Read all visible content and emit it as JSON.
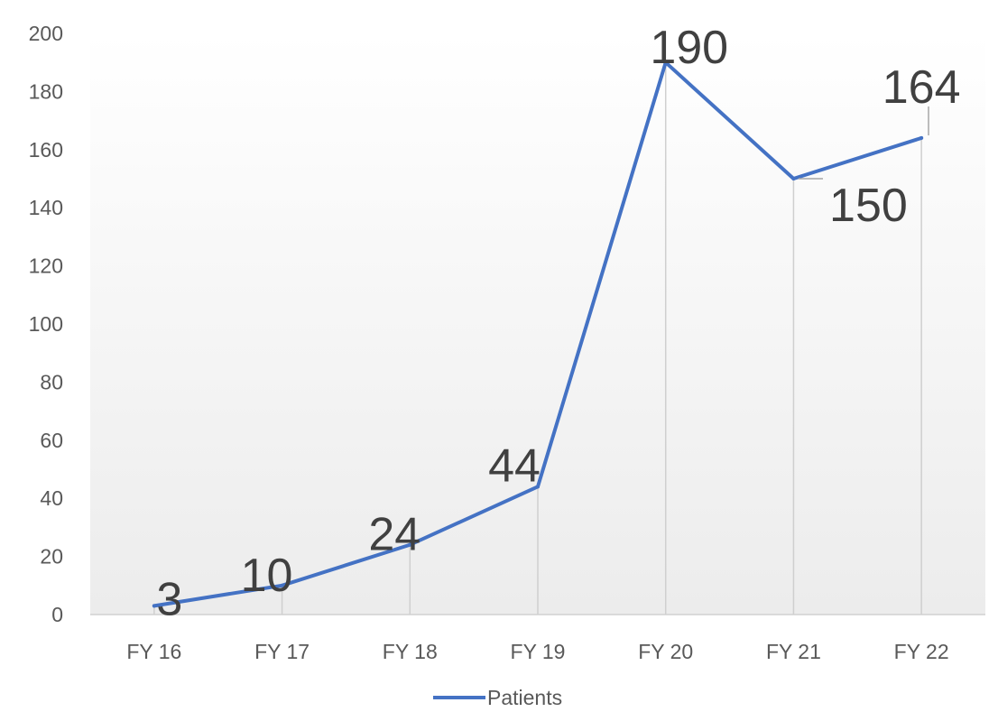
{
  "chart_data": {
    "type": "line",
    "title": "",
    "xlabel": "",
    "ylabel": "",
    "categories": [
      "FY 16",
      "FY 17",
      "FY 18",
      "FY 19",
      "FY 20",
      "FY 21",
      "FY 22"
    ],
    "series": [
      {
        "name": "Patients",
        "values": [
          3,
          10,
          24,
          44,
          190,
          150,
          164
        ],
        "color": "#4472C4"
      }
    ],
    "y_ticks": [
      0,
      20,
      40,
      60,
      80,
      100,
      120,
      140,
      160,
      180,
      200
    ],
    "ylim": [
      0,
      200
    ],
    "drop_lines": true,
    "background": "gradient",
    "legend_position": "bottom"
  }
}
